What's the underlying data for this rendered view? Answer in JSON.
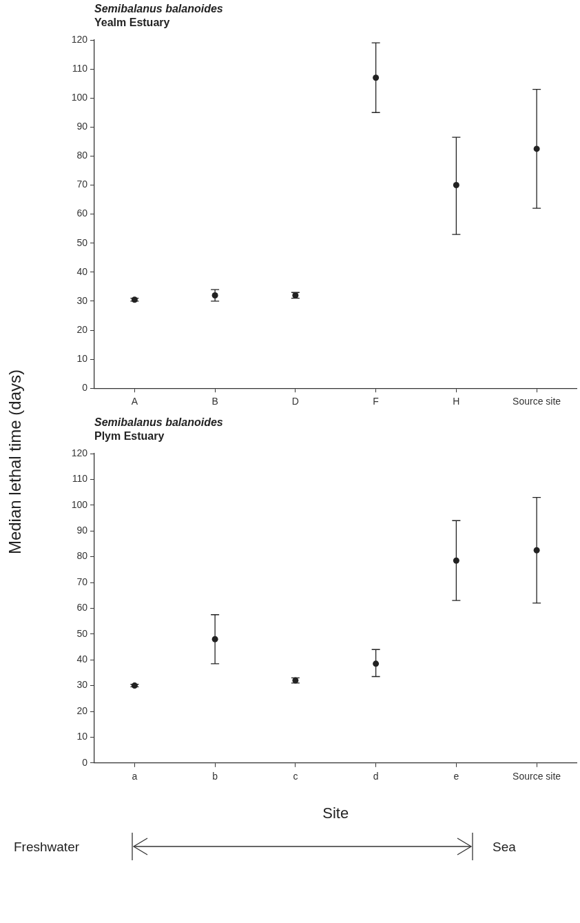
{
  "chart_data": [
    {
      "type": "scatter",
      "title": "Semibalanus balanoides",
      "subtitle": "Yealm Estuary",
      "ylabel": "Median lethal time (days)",
      "categories": [
        "A",
        "B",
        "D",
        "F",
        "H",
        "Source site"
      ],
      "values": [
        30.5,
        32,
        32,
        107,
        70,
        82.5
      ],
      "errors": [
        [
          30,
          31
        ],
        [
          30,
          34
        ],
        [
          31,
          33
        ],
        [
          95,
          119
        ],
        [
          53,
          86.5
        ],
        [
          62,
          103
        ]
      ],
      "color": "#222222",
      "marker": "circle",
      "ylim": [
        0,
        120
      ],
      "yticks": [
        0,
        10,
        20,
        30,
        40,
        50,
        60,
        70,
        80,
        90,
        100,
        110,
        120
      ],
      "grid": false,
      "legend": false
    },
    {
      "type": "scatter",
      "title": "Semibalanus balanoides",
      "subtitle": "Plym Estuary",
      "xlabel": "Site",
      "categories": [
        "a",
        "b",
        "c",
        "d",
        "e",
        "Source site"
      ],
      "values": [
        30,
        48,
        32,
        38.5,
        78.5,
        82.5
      ],
      "errors": [
        [
          29.5,
          30.5
        ],
        [
          38.5,
          57.5
        ],
        [
          31,
          33
        ],
        [
          33.5,
          44
        ],
        [
          63,
          94
        ],
        [
          62,
          103
        ]
      ],
      "color": "#222222",
      "marker": "circle",
      "ylim": [
        0,
        120
      ],
      "yticks": [
        0,
        10,
        20,
        30,
        40,
        50,
        60,
        70,
        80,
        90,
        100,
        110,
        120
      ],
      "grid": false,
      "legend": false,
      "annotations": [
        "Freshwater",
        "Sea"
      ]
    }
  ]
}
